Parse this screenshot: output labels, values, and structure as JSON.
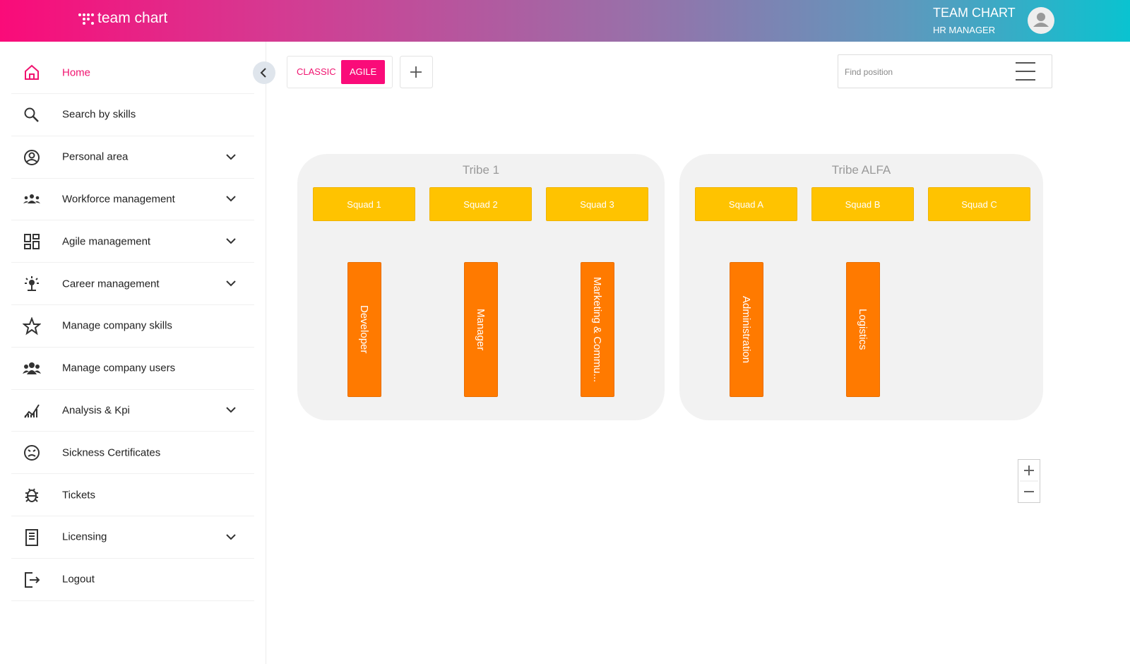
{
  "header": {
    "logo": "team chart",
    "app_title": "TEAM CHART",
    "user_role": "HR MANAGER"
  },
  "menu": [
    {
      "label": "Home",
      "active": true,
      "submenu": false
    },
    {
      "label": "Search by skills",
      "active": false,
      "submenu": false
    },
    {
      "label": "Personal area",
      "active": false,
      "submenu": true
    },
    {
      "label": "Workforce management",
      "active": false,
      "submenu": true
    },
    {
      "label": "Agile management",
      "active": false,
      "submenu": true
    },
    {
      "label": "Career management",
      "active": false,
      "submenu": true
    },
    {
      "label": "Manage company skills",
      "active": false,
      "submenu": false
    },
    {
      "label": "Manage company users",
      "active": false,
      "submenu": false
    },
    {
      "label": "Analysis & Kpi",
      "active": false,
      "submenu": true
    },
    {
      "label": "Sickness Certificates",
      "active": false,
      "submenu": false
    },
    {
      "label": "Tickets",
      "active": false,
      "submenu": false
    },
    {
      "label": "Licensing",
      "active": false,
      "submenu": true
    },
    {
      "label": "Logout",
      "active": false,
      "submenu": false
    }
  ],
  "toolbar": {
    "views": [
      "CLASSIC",
      "AGILE"
    ],
    "active_view": 1,
    "search_placeholder": "Find position"
  },
  "tribes": [
    {
      "name": "Tribe 1",
      "squads": [
        {
          "name": "Squad 1",
          "role": "Developer"
        },
        {
          "name": "Squad 2",
          "role": "Manager"
        },
        {
          "name": "Squad 3",
          "role": "Marketing & Commu..."
        }
      ]
    },
    {
      "name": "Tribe ALFA",
      "squads": [
        {
          "name": "Squad A",
          "role": "Administration"
        },
        {
          "name": "Squad B",
          "role": "Logistics"
        },
        {
          "name": "Squad C"
        }
      ]
    }
  ]
}
